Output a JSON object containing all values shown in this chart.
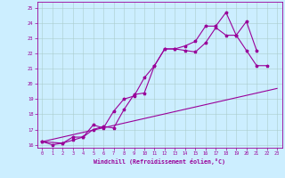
{
  "xlabel": "Windchill (Refroidissement éolien,°C)",
  "xlim": [
    -0.5,
    23.5
  ],
  "ylim": [
    15.8,
    25.4
  ],
  "xticks": [
    0,
    1,
    2,
    3,
    4,
    5,
    6,
    7,
    8,
    9,
    10,
    11,
    12,
    13,
    14,
    15,
    16,
    17,
    18,
    19,
    20,
    21,
    22,
    23
  ],
  "yticks": [
    16,
    17,
    18,
    19,
    20,
    21,
    22,
    23,
    24,
    25
  ],
  "bg_color": "#cceeff",
  "grid_color": "#aacccc",
  "line_color": "#990099",
  "line1_x": [
    0,
    23
  ],
  "line1_y": [
    16.2,
    19.7
  ],
  "line2_x": [
    0,
    1,
    2,
    3,
    4,
    5,
    6,
    7,
    8,
    9,
    10,
    11,
    12,
    13,
    14,
    15,
    16,
    17,
    18,
    19,
    20,
    21,
    22
  ],
  "line2_y": [
    16.2,
    16.0,
    16.1,
    16.3,
    16.5,
    17.0,
    17.2,
    17.1,
    18.3,
    19.3,
    19.4,
    21.2,
    22.3,
    22.3,
    22.2,
    22.1,
    22.7,
    23.7,
    23.2,
    23.2,
    22.2,
    21.2,
    21.2
  ],
  "line3_x": [
    0,
    2,
    3,
    4,
    5,
    6,
    7,
    8,
    9,
    10,
    11,
    12,
    13,
    14,
    15,
    16,
    17,
    18,
    19,
    20,
    21
  ],
  "line3_y": [
    16.2,
    16.1,
    16.5,
    16.5,
    17.3,
    17.1,
    18.2,
    19.0,
    19.2,
    20.4,
    21.2,
    22.3,
    22.3,
    22.5,
    22.8,
    23.8,
    23.8,
    24.7,
    23.2,
    24.1,
    22.2
  ]
}
